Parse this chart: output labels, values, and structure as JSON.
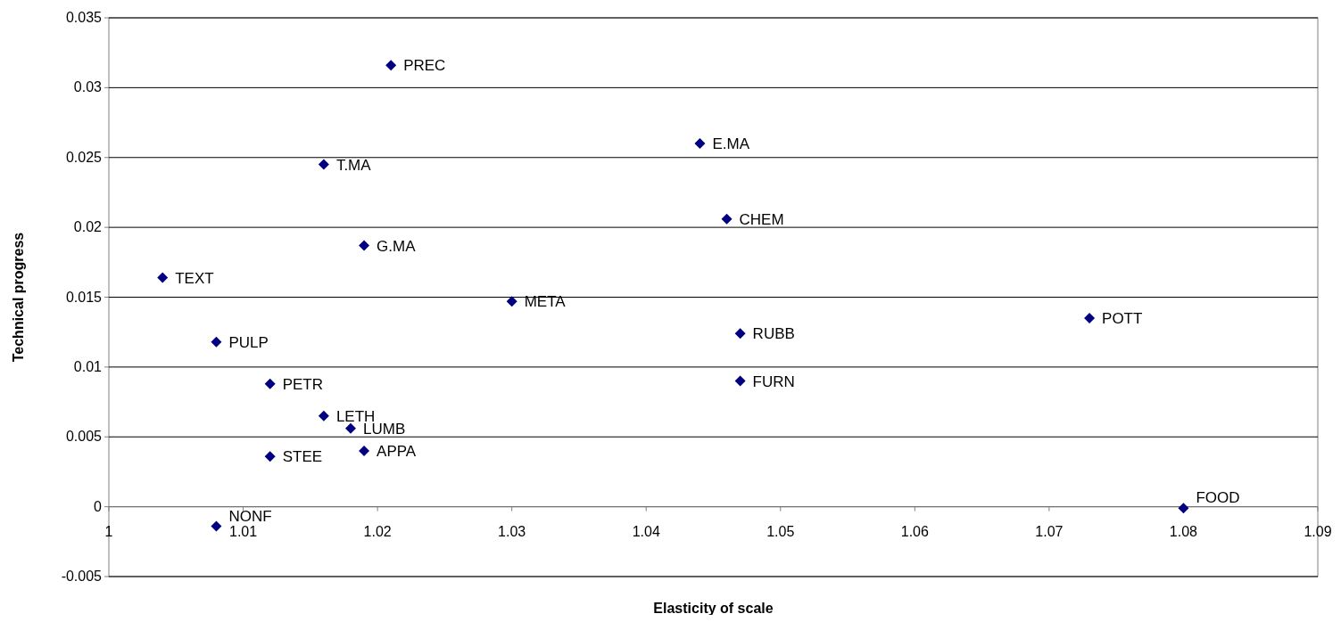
{
  "chart_data": {
    "type": "scatter",
    "xlabel": "Elasticity of scale",
    "ylabel": "Technical progress",
    "xlim": [
      1,
      1.09
    ],
    "xticks": [
      1,
      1.01,
      1.02,
      1.03,
      1.04,
      1.05,
      1.06,
      1.07,
      1.08,
      1.09
    ],
    "ylim": [
      -0.005,
      0.035
    ],
    "yticks": [
      -0.005,
      0,
      0.005,
      0.01,
      0.015,
      0.02,
      0.025,
      0.03,
      0.035
    ],
    "grid": "y",
    "marker": "diamond",
    "series": [
      {
        "color": "#000080",
        "x": [
          1.021,
          1.044,
          1.016,
          1.046,
          1.019,
          1.004,
          1.03,
          1.073,
          1.047,
          1.008,
          1.047,
          1.012,
          1.016,
          1.018,
          1.019,
          1.012,
          1.008,
          1.08
        ],
        "values": [
          0.0316,
          0.026,
          0.0245,
          0.0206,
          0.0187,
          0.0164,
          0.0147,
          0.0135,
          0.0124,
          0.0118,
          0.009,
          0.0088,
          0.0065,
          0.0056,
          0.004,
          0.0036,
          -0.0014,
          -0.0001
        ]
      }
    ],
    "annotations": [
      {
        "text": "PREC",
        "x": 1.021,
        "y": 0.0316
      },
      {
        "text": "E.MA",
        "x": 1.044,
        "y": 0.026
      },
      {
        "text": "T.MA",
        "x": 1.016,
        "y": 0.0245
      },
      {
        "text": "CHEM",
        "x": 1.046,
        "y": 0.0206
      },
      {
        "text": "G.MA",
        "x": 1.019,
        "y": 0.0187
      },
      {
        "text": "TEXT",
        "x": 1.004,
        "y": 0.0164
      },
      {
        "text": "META",
        "x": 1.03,
        "y": 0.0147
      },
      {
        "text": "POTT",
        "x": 1.073,
        "y": 0.0135
      },
      {
        "text": "RUBB",
        "x": 1.047,
        "y": 0.0124
      },
      {
        "text": "PULP",
        "x": 1.008,
        "y": 0.0118
      },
      {
        "text": "FURN",
        "x": 1.047,
        "y": 0.009
      },
      {
        "text": "PETR",
        "x": 1.012,
        "y": 0.0088
      },
      {
        "text": "LETH",
        "x": 1.016,
        "y": 0.0065
      },
      {
        "text": "LUMB",
        "x": 1.018,
        "y": 0.0056
      },
      {
        "text": "APPA",
        "x": 1.019,
        "y": 0.004
      },
      {
        "text": "STEE",
        "x": 1.012,
        "y": 0.0036
      },
      {
        "text": "NONF",
        "x": 1.008,
        "y": -0.0014
      },
      {
        "text": "FOOD",
        "x": 1.08,
        "y": -0.0001
      }
    ]
  }
}
